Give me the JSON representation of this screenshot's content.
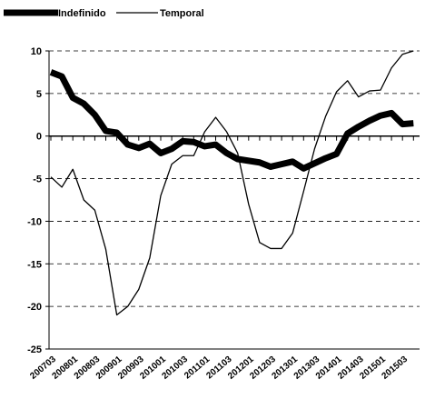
{
  "chart_data": {
    "type": "line",
    "categories": [
      "200703",
      null,
      "200801",
      null,
      "200803",
      null,
      "200901",
      null,
      "200903",
      null,
      "201001",
      null,
      "201003",
      null,
      "201101",
      null,
      "201103",
      null,
      "201201",
      null,
      "201203",
      null,
      "201301",
      null,
      "201303",
      null,
      "201401",
      null,
      "201403",
      null,
      "201501",
      null,
      "201503",
      null
    ],
    "series": [
      {
        "name": "Indefinido",
        "color": "#000000",
        "values": [
          7.5,
          7,
          4.5,
          3.8,
          2.5,
          0.6,
          0.4,
          -1,
          -1.4,
          -0.9,
          -2,
          -1.5,
          -0.6,
          -0.7,
          -1.2,
          -1,
          -2,
          -2.7,
          -2.9,
          -3.1,
          -3.6,
          -3.3,
          -3,
          -3.8,
          -3.2,
          -2.6,
          -2.1,
          0.3,
          1.1,
          1.8,
          2.4,
          2.7,
          1.4,
          1.5
        ]
      },
      {
        "name": "Temporal",
        "color": "#000000",
        "values": [
          -4.8,
          -6,
          -3.9,
          -7.5,
          -8.7,
          -13.3,
          -21,
          -20,
          -18,
          -14.3,
          -7,
          -3.3,
          -2.3,
          -2.3,
          0.5,
          2.2,
          0.5,
          -2,
          -8,
          -12.5,
          -13.2,
          -13.2,
          -11.4,
          -6.5,
          -1.5,
          2.3,
          5.2,
          6.5,
          4.6,
          5.3,
          5.4,
          8,
          9.6,
          10
        ]
      }
    ],
    "ylim": [
      -25,
      10
    ],
    "yticks": [
      -25,
      -20,
      -15,
      -10,
      -5,
      0,
      5,
      10
    ],
    "grid": true,
    "legend": "top-left"
  }
}
